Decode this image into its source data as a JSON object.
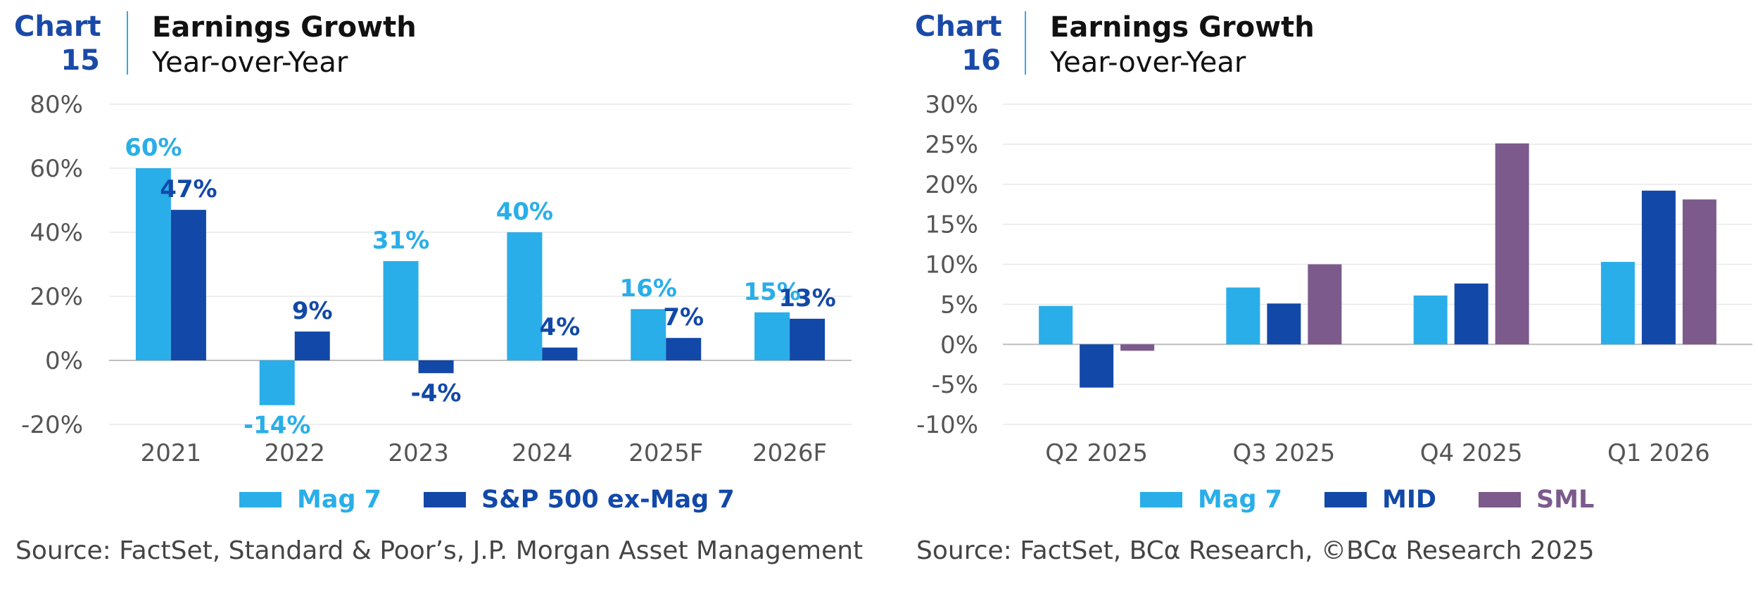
{
  "charts": [
    {
      "number_line1": "Chart",
      "number_line2": "15",
      "header_title": "Earnings Growth",
      "header_subtitle": "Year-over-Year",
      "source": "Source: FactSet, Standard & Poor’s, J.P. Morgan Asset Management"
    },
    {
      "number_line1": "Chart",
      "number_line2": "16",
      "header_title": "Earnings Growth",
      "header_subtitle": "Year-over-Year",
      "source": "Source: FactSet, BCα Research, ©BCα Research 2025"
    }
  ],
  "chart_data": [
    {
      "type": "bar",
      "title": "Earnings Growth",
      "subtitle": "Year-over-Year",
      "categories": [
        "2021",
        "2022",
        "2023",
        "2024",
        "2025F",
        "2026F"
      ],
      "series": [
        {
          "name": "Mag 7",
          "color": "#29aee9",
          "values": [
            60,
            -14,
            31,
            40,
            16,
            15
          ]
        },
        {
          "name": "S&P 500 ex-Mag 7",
          "color": "#1248a8",
          "values": [
            47,
            9,
            -4,
            4,
            7,
            13
          ]
        }
      ],
      "data_labels": true,
      "ylim": [
        -20,
        80
      ],
      "yticks": [
        -20,
        0,
        20,
        40,
        60,
        80
      ],
      "ytick_labels": [
        "-20%",
        "0%",
        "20%",
        "40%",
        "60%",
        "80%"
      ],
      "grid": true,
      "legend": "bottom"
    },
    {
      "type": "bar",
      "title": "Earnings Growth",
      "subtitle": "Year-over-Year",
      "categories": [
        "Q2 2025",
        "Q3 2025",
        "Q4 2025",
        "Q1 2026"
      ],
      "series": [
        {
          "name": "Mag 7",
          "color": "#29aee9",
          "values": [
            4.8,
            7.1,
            6.1,
            10.3
          ]
        },
        {
          "name": "MID",
          "color": "#1248a8",
          "values": [
            -5.4,
            5.1,
            7.6,
            19.2
          ]
        },
        {
          "name": "SML",
          "color": "#7c5a8c",
          "values": [
            -0.8,
            10.0,
            25.1,
            18.1
          ]
        }
      ],
      "data_labels": false,
      "ylim": [
        -10,
        30
      ],
      "yticks": [
        -10,
        -5,
        0,
        5,
        10,
        15,
        20,
        25,
        30
      ],
      "ytick_labels": [
        "-10%",
        "-5%",
        "0%",
        "5%",
        "10%",
        "15%",
        "20%",
        "25%",
        "30%"
      ],
      "grid": true,
      "legend": "bottom"
    }
  ]
}
